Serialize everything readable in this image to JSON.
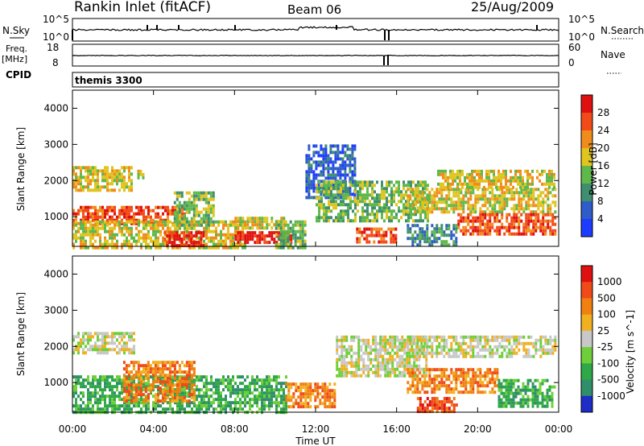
{
  "header": {
    "title": "Rankin Inlet (fitACF)",
    "beam": "Beam 06",
    "date": "25/Aug/2009"
  },
  "top_panels": {
    "nsky_label": "N.Sky",
    "nsearch_label": "N.Search",
    "n_ticks": [
      "10^5",
      "10^0"
    ],
    "freq_label": "Freq.",
    "freq_unit": "[MHz]",
    "freq_ticks": [
      "18",
      "8"
    ],
    "nave_label": "Nave",
    "nave_ticks": [
      "60",
      "0"
    ],
    "cpid_label": "CPID",
    "cpid_value": "themis 3300"
  },
  "chart_data": [
    {
      "type": "heatmap",
      "name": "power",
      "ylabel": "Slant Range [km]",
      "ylim": [
        180,
        4500
      ],
      "yticks": [
        1000,
        2000,
        3000,
        4000
      ],
      "xlim": [
        0,
        24
      ],
      "xticks": [
        "00:00",
        "04:00",
        "08:00",
        "12:00",
        "16:00",
        "20:00",
        "00:00"
      ],
      "colorbar": {
        "label": "Power [dB]",
        "levels": [
          0,
          4,
          8,
          12,
          16,
          20,
          24,
          28,
          32
        ],
        "ticks": [
          "4",
          "8",
          "12",
          "16",
          "20",
          "24",
          "28"
        ],
        "colors": [
          "#1e3cff",
          "#2e5cc8",
          "#3f8f6e",
          "#5fb84a",
          "#e0c420",
          "#f08c1c",
          "#f24a18",
          "#e01010"
        ]
      },
      "regions": [
        {
          "t": [
            0.0,
            2.9
          ],
          "r": [
            1700,
            2400
          ],
          "level": 4
        },
        {
          "t": [
            3.2,
            3.6
          ],
          "r": [
            2000,
            2300
          ],
          "level": 4
        },
        {
          "t": [
            0.0,
            5.5
          ],
          "r": [
            800,
            1300
          ],
          "level": 6
        },
        {
          "t": [
            0.0,
            8.5
          ],
          "r": [
            180,
            900
          ],
          "level": 4
        },
        {
          "t": [
            5.0,
            7.0
          ],
          "r": [
            800,
            1700
          ],
          "level": 3
        },
        {
          "t": [
            4.5,
            6.5
          ],
          "r": [
            200,
            600
          ],
          "level": 7
        },
        {
          "t": [
            8.0,
            10.8
          ],
          "r": [
            250,
            600
          ],
          "level": 7
        },
        {
          "t": [
            8.0,
            10.5
          ],
          "r": [
            700,
            1000
          ],
          "level": 4
        },
        {
          "t": [
            10.0,
            11.5
          ],
          "r": [
            180,
            900
          ],
          "level": 3
        },
        {
          "t": [
            11.5,
            14.0
          ],
          "r": [
            1500,
            3000
          ],
          "level": 1
        },
        {
          "t": [
            12.0,
            17.5
          ],
          "r": [
            900,
            2000
          ],
          "level": 3
        },
        {
          "t": [
            14.0,
            16.0
          ],
          "r": [
            300,
            700
          ],
          "level": 6
        },
        {
          "t": [
            16.5,
            23.8
          ],
          "r": [
            1100,
            1800
          ],
          "level": 4
        },
        {
          "t": [
            18.0,
            23.8
          ],
          "r": [
            1800,
            2300
          ],
          "level": 4
        },
        {
          "t": [
            19.0,
            23.8
          ],
          "r": [
            500,
            1100
          ],
          "level": 6
        },
        {
          "t": [
            16.5,
            19.0
          ],
          "r": [
            200,
            800
          ],
          "level": 2
        }
      ]
    },
    {
      "type": "heatmap",
      "name": "velocity",
      "ylabel": "Slant Range [km]",
      "xlabel": "Time UT",
      "ylim": [
        180,
        4500
      ],
      "yticks": [
        1000,
        2000,
        3000,
        4000
      ],
      "xlim": [
        0,
        24
      ],
      "xticks": [
        "00:00",
        "04:00",
        "08:00",
        "12:00",
        "16:00",
        "20:00",
        "00:00"
      ],
      "colorbar": {
        "label": "Velocity [m s^-1]",
        "ticks": [
          "1000",
          "500",
          "100",
          "25",
          "-25",
          "-100",
          "-500",
          "-1000"
        ],
        "colors": [
          "#1e2cc8",
          "#2f8f6a",
          "#2fa848",
          "#6fcf3a",
          "#c8c8c8",
          "#f0b020",
          "#f08010",
          "#f04a18",
          "#e01010"
        ]
      },
      "regions": [
        {
          "t": [
            0.0,
            3.0
          ],
          "r": [
            1800,
            2400
          ],
          "level": 4
        },
        {
          "t": [
            0.0,
            10.5
          ],
          "r": [
            180,
            1200
          ],
          "level": 2
        },
        {
          "t": [
            2.5,
            6.0
          ],
          "r": [
            500,
            1600
          ],
          "level": 6
        },
        {
          "t": [
            10.5,
            13.0
          ],
          "r": [
            300,
            1000
          ],
          "level": 6
        },
        {
          "t": [
            13.0,
            17.5
          ],
          "r": [
            1200,
            2300
          ],
          "level": 4
        },
        {
          "t": [
            16.5,
            23.8
          ],
          "r": [
            1700,
            2300
          ],
          "level": 4
        },
        {
          "t": [
            16.5,
            21.0
          ],
          "r": [
            700,
            1400
          ],
          "level": 6
        },
        {
          "t": [
            21.0,
            23.8
          ],
          "r": [
            300,
            1100
          ],
          "level": 2
        },
        {
          "t": [
            17.0,
            19.0
          ],
          "r": [
            200,
            600
          ],
          "level": 7
        }
      ]
    }
  ]
}
